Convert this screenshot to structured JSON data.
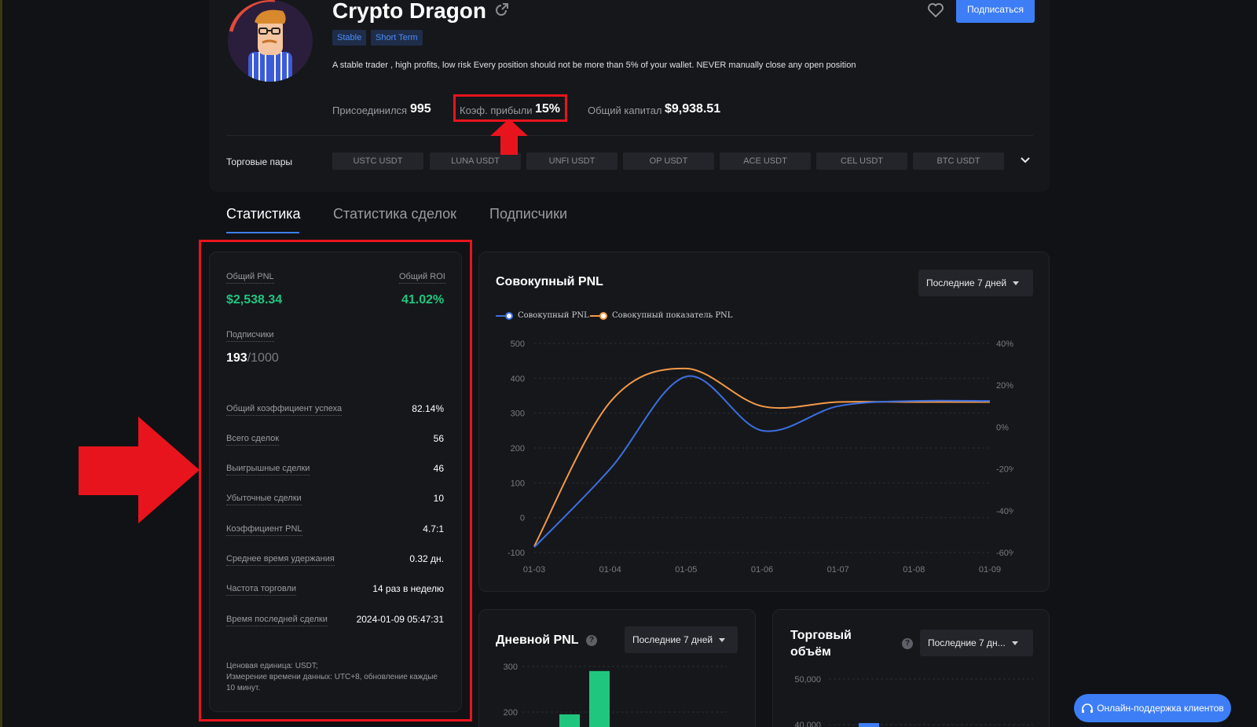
{
  "trader": {
    "name": "Crypto Dragon",
    "tags": [
      "Stable",
      "Short Term"
    ],
    "description": "A stable trader , high profits, low risk Every position should not be more than 5% of your wallet. NEVER manually close any open position",
    "subscribe_label": "Подписаться"
  },
  "stats": {
    "joined_label": "Присоединился",
    "joined_value": "995",
    "profit_ratio_label": "Коэф. прибыли",
    "profit_ratio_value": "15%",
    "capital_label": "Общий капитал",
    "capital_value": "$9,938.51"
  },
  "pairs": {
    "label": "Торговые пары",
    "items": [
      "USTC USDT",
      "LUNA USDT",
      "UNFI USDT",
      "OP USDT",
      "ACE USDT",
      "CEL USDT",
      "BTC USDT"
    ]
  },
  "tabs": [
    "Статистика",
    "Статистика сделок",
    "Подписчики"
  ],
  "panel": {
    "total_pnl_label": "Общий PNL",
    "total_pnl_value": "$2,538.34",
    "total_roi_label": "Общий ROI",
    "total_roi_value": "41.02%",
    "subscribers_label": "Подписчики",
    "subscribers_value": "193",
    "subscribers_max": "/1000",
    "rows": [
      {
        "label": "Общий коэффициент успеха",
        "value": "82.14%"
      },
      {
        "label": "Всего сделок",
        "value": "56"
      },
      {
        "label": "Выигрышные сделки",
        "value": "46"
      },
      {
        "label": "Убыточные сделки",
        "value": "10"
      },
      {
        "label": "Коэффициент PNL",
        "value": "4.7:1"
      },
      {
        "label": "Среднее время удержания",
        "value": "0.32 дн."
      },
      {
        "label": "Частота торговли",
        "value": "14 раз в неделю"
      },
      {
        "label": "Время последней сделки",
        "value": "2024-01-09 05:47:31"
      }
    ],
    "note_line1": "Ценовая единица: USDT;",
    "note_line2": "Измерение времени данных: UTC+8, обновление каждые 10 минут."
  },
  "cumulative": {
    "title": "Совокупный PNL",
    "period": "Последние 7 дней"
  },
  "daily": {
    "title": "Дневной PNL",
    "period": "Последние 7 дней"
  },
  "volume": {
    "title": "Торговый объём",
    "period": "Последние 7 дн..."
  },
  "support_label": "Онлайн-поддержка клиентов",
  "colors": {
    "accent": "#3d7ef7",
    "profit": "#1fc77e",
    "line_pnl": "#3d6fe0",
    "line_pnl_rate": "#f29a4a",
    "annotation": "#e8141d"
  },
  "chart_data": [
    {
      "type": "line",
      "x": [
        "01-03",
        "01-04",
        "01-05",
        "01-06",
        "01-07",
        "01-08",
        "01-09"
      ],
      "y_ticks": [
        500,
        400,
        300,
        200,
        100,
        0,
        -100
      ],
      "y2_ticks": [
        "40%",
        "20%",
        "0%",
        "-20%",
        "-40%",
        "-60%"
      ],
      "ylim": [
        -100,
        500
      ],
      "y2lim": [
        -60,
        40
      ],
      "series": [
        {
          "name": "Совокупный PNL",
          "axis": "left",
          "values": [
            -85,
            140,
            405,
            250,
            320,
            335,
            335
          ]
        },
        {
          "name": "Совокупный показатель PNL",
          "axis": "right",
          "values": [
            -57,
            12,
            28,
            10,
            12,
            12,
            12
          ]
        }
      ]
    },
    {
      "type": "bar",
      "y_ticks": [
        300,
        200
      ],
      "values_visible": [
        195,
        290
      ]
    },
    {
      "type": "bar",
      "y_ticks": [
        "50,000",
        "40,000"
      ]
    }
  ]
}
